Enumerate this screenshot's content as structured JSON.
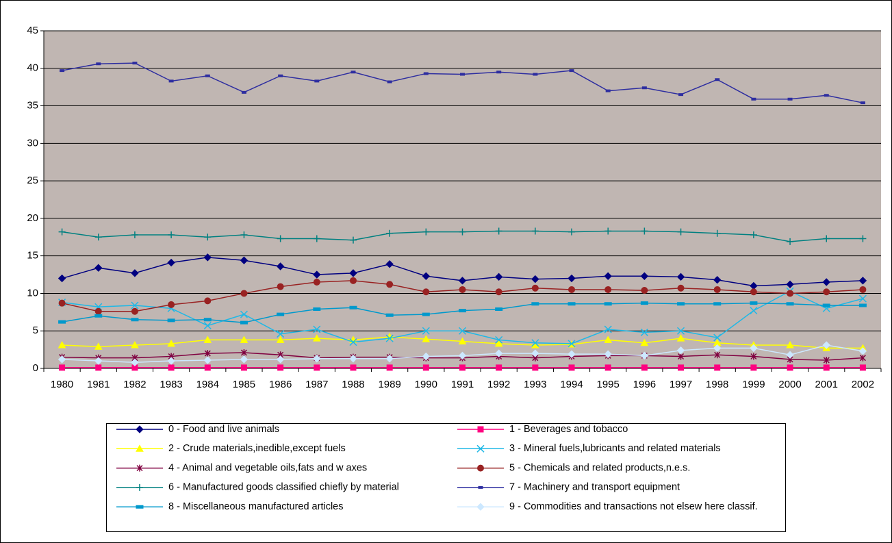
{
  "chart_data": {
    "type": "line",
    "categories": [
      "1980",
      "1981",
      "1982",
      "1983",
      "1984",
      "1985",
      "1986",
      "1987",
      "1988",
      "1989",
      "1990",
      "1991",
      "1992",
      "1993",
      "1994",
      "1995",
      "1996",
      "1997",
      "1998",
      "1999",
      "2000",
      "2001",
      "2002"
    ],
    "ylim": [
      0,
      45
    ],
    "yticks": [
      0,
      5,
      10,
      15,
      20,
      25,
      30,
      35,
      40,
      45
    ],
    "grid": true,
    "legend": "bottom",
    "series": [
      {
        "name": "0 - Food and live animals",
        "color": "#000080",
        "marker": "diamond",
        "values": [
          12.0,
          13.4,
          12.7,
          14.1,
          14.8,
          14.4,
          13.6,
          12.5,
          12.7,
          13.9,
          12.3,
          11.7,
          12.2,
          11.9,
          12.0,
          12.3,
          12.3,
          12.2,
          11.8,
          11.0,
          11.2,
          11.5,
          11.7
        ]
      },
      {
        "name": "1 - Beverages and tobacco",
        "color": "#ff0080",
        "marker": "square",
        "values": [
          0.1,
          0.1,
          0.1,
          0.1,
          0.1,
          0.1,
          0.1,
          0.1,
          0.1,
          0.1,
          0.1,
          0.1,
          0.1,
          0.1,
          0.1,
          0.1,
          0.1,
          0.1,
          0.1,
          0.1,
          0.1,
          0.1,
          0.1
        ]
      },
      {
        "name": "2 - Crude materials,inedible,except fuels",
        "color": "#ffff00",
        "marker": "triangle",
        "values": [
          3.1,
          2.9,
          3.1,
          3.3,
          3.8,
          3.8,
          3.8,
          4.0,
          3.8,
          4.2,
          3.9,
          3.6,
          3.3,
          3.1,
          3.2,
          3.8,
          3.4,
          4.0,
          3.4,
          3.1,
          3.1,
          2.7,
          2.7
        ]
      },
      {
        "name": "3 - Mineral fuels,lubricants and related materials",
        "color": "#1fb8e6",
        "marker": "x",
        "values": [
          8.8,
          8.2,
          8.4,
          8.0,
          5.7,
          7.2,
          4.6,
          5.2,
          3.5,
          4.0,
          5.0,
          5.0,
          3.8,
          3.4,
          3.3,
          5.2,
          4.8,
          5.0,
          4.1,
          7.7,
          10.3,
          8.0,
          9.3
        ]
      },
      {
        "name": "4 - Animal and vegetable oils,fats and w axes",
        "color": "#800040",
        "marker": "star",
        "values": [
          1.5,
          1.4,
          1.4,
          1.6,
          2.0,
          2.1,
          1.8,
          1.4,
          1.5,
          1.5,
          1.4,
          1.4,
          1.6,
          1.4,
          1.6,
          1.7,
          1.7,
          1.6,
          1.8,
          1.6,
          1.2,
          1.1,
          1.4
        ]
      },
      {
        "name": "5 - Chemicals and related products,n.e.s.",
        "color": "#992222",
        "marker": "circle",
        "values": [
          8.7,
          7.6,
          7.6,
          8.5,
          9.0,
          10.0,
          10.9,
          11.5,
          11.7,
          11.2,
          10.2,
          10.5,
          10.2,
          10.7,
          10.5,
          10.5,
          10.4,
          10.7,
          10.5,
          10.2,
          10.0,
          10.2,
          10.5
        ]
      },
      {
        "name": "6 - Manufactured goods classified chiefly by material",
        "color": "#008080",
        "marker": "plus",
        "values": [
          18.2,
          17.5,
          17.8,
          17.8,
          17.5,
          17.8,
          17.3,
          17.3,
          17.1,
          18.0,
          18.2,
          18.2,
          18.3,
          18.3,
          18.2,
          18.3,
          18.3,
          18.2,
          18.0,
          17.8,
          16.9,
          17.3,
          17.3
        ]
      },
      {
        "name": "7 - Machinery and transport equipment",
        "color": "#2e2ea0",
        "marker": "dash",
        "values": [
          39.7,
          40.6,
          40.7,
          38.3,
          39.0,
          36.8,
          39.0,
          38.3,
          39.5,
          38.2,
          39.3,
          39.2,
          39.5,
          39.2,
          39.7,
          37.0,
          37.4,
          36.5,
          38.5,
          35.9,
          35.9,
          36.4,
          35.4
        ]
      },
      {
        "name": "8 - Miscellaneous manufactured articles",
        "color": "#0099cc",
        "marker": "bar",
        "values": [
          6.2,
          7.0,
          6.5,
          6.4,
          6.5,
          6.1,
          7.2,
          7.9,
          8.1,
          7.1,
          7.2,
          7.7,
          7.9,
          8.6,
          8.6,
          8.6,
          8.7,
          8.6,
          8.6,
          8.7,
          8.6,
          8.4,
          8.4
        ]
      },
      {
        "name": "9 - Commodities and transactions not elsew here classif.",
        "color": "#cce8ff",
        "marker": "diamond",
        "values": [
          1.2,
          1.0,
          0.8,
          1.0,
          1.1,
          1.2,
          1.2,
          1.3,
          1.3,
          1.3,
          1.6,
          1.7,
          2.0,
          2.0,
          1.9,
          1.9,
          1.7,
          2.4,
          2.7,
          2.7,
          1.8,
          3.1,
          2.3
        ]
      }
    ]
  }
}
